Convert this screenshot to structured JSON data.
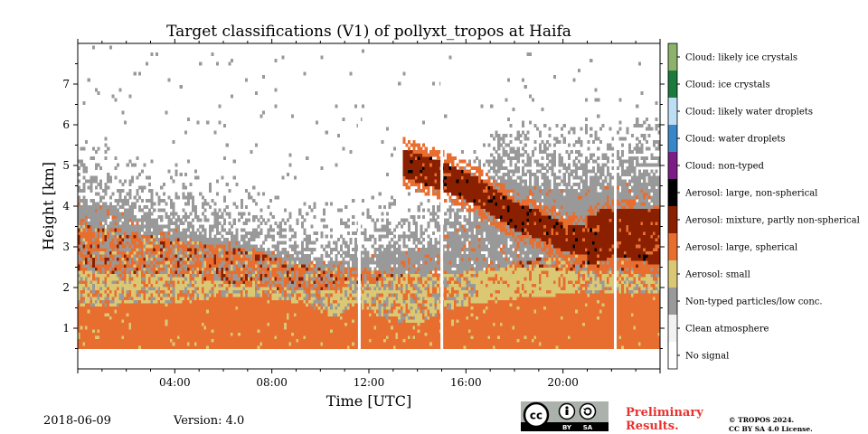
{
  "chart_data": {
    "type": "heatmap",
    "title": "Target classifications (V1) of pollyxt_tropos at Haifa",
    "xlabel": "Time [UTC]",
    "ylabel": "Height [km]",
    "xlim_hours": [
      0,
      24
    ],
    "ylim_km": [
      0,
      8
    ],
    "x_ticks": [
      "04:00",
      "08:00",
      "12:00",
      "16:00",
      "20:00"
    ],
    "x_tick_hours": [
      4,
      8,
      12,
      16,
      20
    ],
    "y_ticks": [
      "1",
      "2",
      "3",
      "4",
      "5",
      "6",
      "7"
    ],
    "y_tick_values": [
      1,
      2,
      3,
      4,
      5,
      6,
      7
    ],
    "legend_position": "right colorbar",
    "classes": [
      {
        "label": "Cloud: likely ice crystals",
        "color": "#8db26b"
      },
      {
        "label": "Cloud: ice crystals",
        "color": "#1b7a3c"
      },
      {
        "label": "Cloud: likely water droplets",
        "color": "#bddff5"
      },
      {
        "label": "Cloud: water droplets",
        "color": "#3a87c8"
      },
      {
        "label": "Cloud: non-typed",
        "color": "#7b1d86"
      },
      {
        "label": "Aerosol: large, non-spherical",
        "color": "#000000"
      },
      {
        "label": "Aerosol: mixture, partly non-spherical",
        "color": "#8a2000"
      },
      {
        "label": "Aerosol: large, spherical",
        "color": "#e86e30"
      },
      {
        "label": "Aerosol: small",
        "color": "#dac874"
      },
      {
        "label": "Non-typed particles/low conc.",
        "color": "#999999"
      },
      {
        "label": "Clean atmosphere",
        "color": "#f2f2f2"
      },
      {
        "label": "No signal",
        "color": "#ffffff"
      }
    ],
    "data_gaps_hours": [
      11.55,
      14.95,
      22.1
    ]
  },
  "footer": {
    "date": "2018-06-09",
    "version": "Version: 4.0",
    "preliminary_line1": "Preliminary",
    "preliminary_line2": "Results.",
    "copyright_line1": "© TROPOS 2024.",
    "copyright_line2": "CC BY SA 4.0 License.",
    "cc_text": "cc",
    "by_text": "BY",
    "sa_text": "SA"
  }
}
